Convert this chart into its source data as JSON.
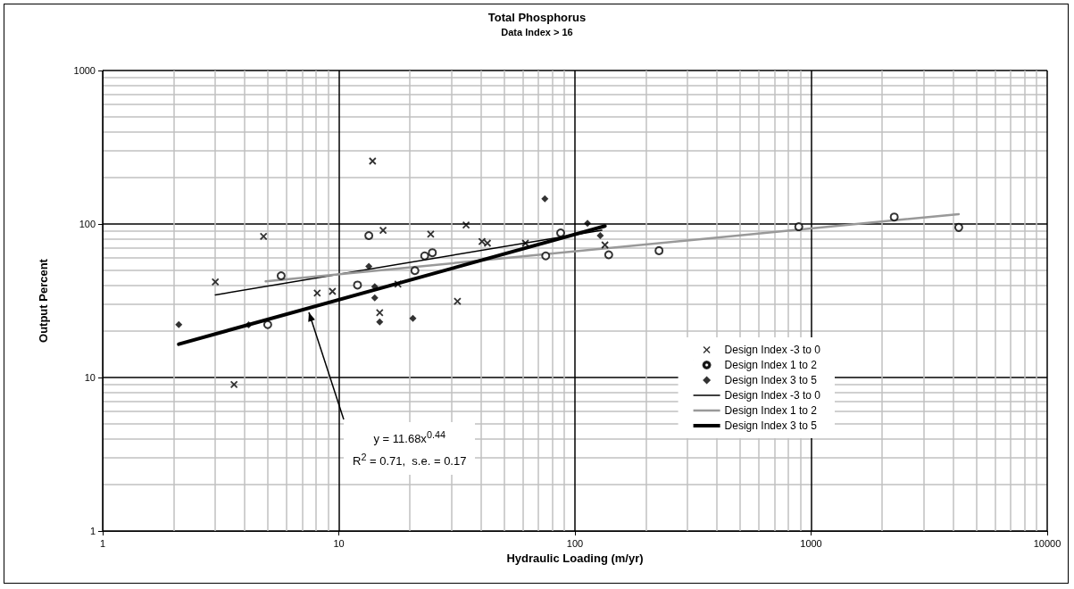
{
  "chart_data": {
    "type": "scatter",
    "title": "Total Phosphorus",
    "subtitle": "Data Index > 16",
    "xlabel": "Hydraulic Loading (m/yr)",
    "ylabel": "Output Percent",
    "log": "xy",
    "xlim": [
      1,
      10000
    ],
    "ylim": [
      1,
      1000
    ],
    "xticks": [
      1,
      10,
      100,
      1000,
      10000
    ],
    "yticks": [
      1,
      10,
      100,
      1000
    ],
    "grid": true,
    "legend": "right",
    "series": [
      {
        "name": "Design Index -3 to 0",
        "marker": "cross",
        "color": "#000000",
        "x": [
          3.0,
          4.8,
          3.6,
          8.1,
          9.4,
          13.9,
          15.4,
          14.9,
          24.5,
          34.6,
          40.4,
          42.6,
          17.8,
          31.8,
          61.7,
          134
        ],
        "values": [
          42,
          83,
          9.0,
          35.5,
          36.4,
          257,
          91,
          26.4,
          86,
          98.6,
          77,
          75,
          40.6,
          31.4,
          75,
          73
        ]
      },
      {
        "name": "Design Index 1 to 2",
        "marker": "circle",
        "color": "#000000",
        "x": [
          5.7,
          5.0,
          12.0,
          13.4,
          23.1,
          24.9,
          21,
          75.2,
          87,
          139,
          227,
          887,
          2250,
          4220
        ],
        "values": [
          46,
          22.1,
          40,
          84,
          62,
          65,
          49.7,
          62,
          87.5,
          63,
          67,
          96,
          111,
          95
        ]
      },
      {
        "name": "Design Index 3 to 5",
        "marker": "diamond",
        "color": "#000000",
        "x": [
          2.1,
          4.15,
          13.4,
          14.2,
          14.2,
          14.9,
          20.6,
          74.6,
          128,
          113
        ],
        "values": [
          22.1,
          22,
          53,
          39,
          33,
          23,
          24.3,
          146,
          84,
          101
        ]
      },
      {
        "name": "Design Index -3 to 0",
        "type": "line",
        "marker": "none",
        "color": "#000000",
        "x": [
          3.0,
          130
        ],
        "values": [
          34.5,
          91
        ]
      },
      {
        "name": "Design Index 1 to 2",
        "type": "line",
        "marker": "none",
        "color": "#999999",
        "x": [
          4.9,
          4220
        ],
        "values": [
          42.3,
          116
        ]
      },
      {
        "name": "Design Index 3 to 5",
        "type": "line",
        "marker": "none",
        "color": "#000000",
        "x": [
          2.1,
          134
        ],
        "values": [
          16.5,
          97
        ]
      }
    ],
    "annotations": [
      "y = 11.68x$^{0.44}$",
      "R$^{2}$ = 0.71,  s.e. = 0.17"
    ]
  }
}
